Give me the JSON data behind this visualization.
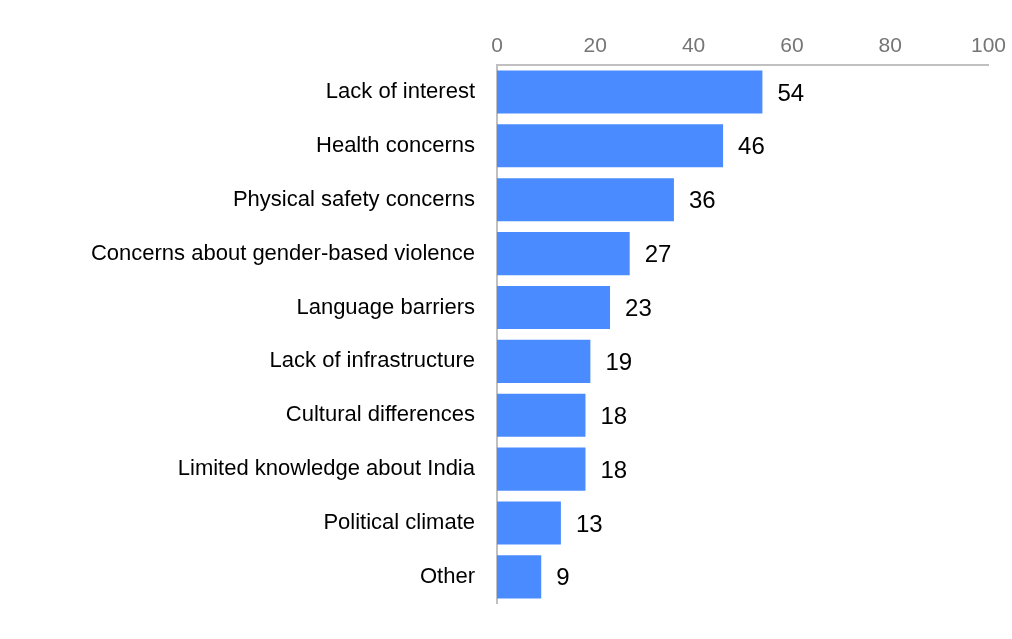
{
  "chart_data": {
    "type": "bar",
    "orientation": "horizontal",
    "categories": [
      "Lack of interest",
      "Health concerns",
      "Physical safety concerns",
      "Concerns about gender-based violence",
      "Language barriers",
      "Lack of infrastructure",
      "Cultural differences",
      "Limited knowledge about India",
      "Political climate",
      "Other"
    ],
    "values": [
      54,
      46,
      36,
      27,
      23,
      19,
      18,
      18,
      13,
      9
    ],
    "color": "#4a8cff",
    "xlim": [
      0,
      100
    ],
    "xticks": [
      0,
      20,
      40,
      60,
      80,
      100
    ],
    "grid": false,
    "legend": false,
    "data_labels": true
  }
}
